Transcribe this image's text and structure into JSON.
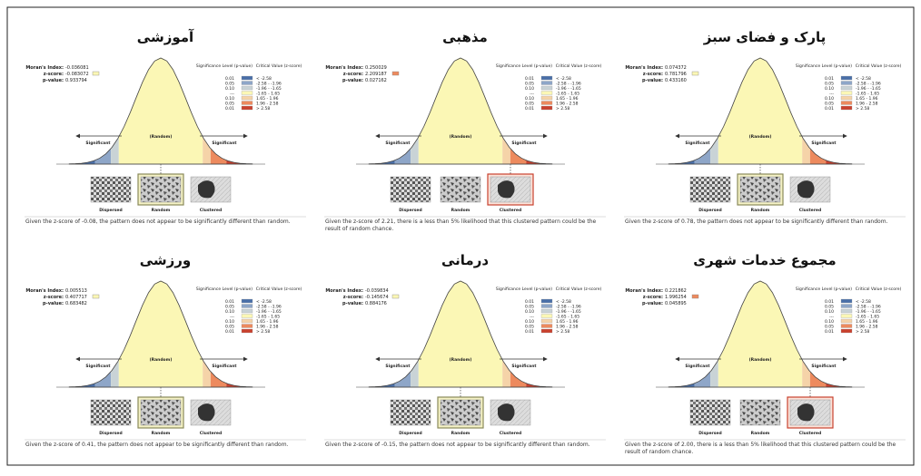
{
  "labels": {
    "moran": "Moran's Index:",
    "z": "z-score:",
    "p": "p-value:",
    "sig_level": "Significance Level (p-value)",
    "crit": "Critical Value (z-score)",
    "significant": "Significant",
    "random_curve": "(Random)",
    "patterns": [
      "Dispersed",
      "Random",
      "Clustered"
    ]
  },
  "legend_rows": [
    {
      "p": "0.01",
      "range": "< -2.58",
      "color": "#4a6fa8"
    },
    {
      "p": "0.05",
      "range": "-2.58 - -1.96",
      "color": "#8ea6c8"
    },
    {
      "p": "0.10",
      "range": "-1.96 - -1.65",
      "color": "#c9d3d6"
    },
    {
      "p": "---",
      "range": "-1.65 - 1.65",
      "color": "#fbf7b5"
    },
    {
      "p": "0.10",
      "range": "1.65 - 1.96",
      "color": "#f5d3a8"
    },
    {
      "p": "0.05",
      "range": "1.96 - 2.58",
      "color": "#ed8a5e"
    },
    {
      "p": "0.01",
      "range": "> 2.58",
      "color": "#c9412e"
    }
  ],
  "z_bounds": [
    -2.58,
    -1.96,
    -1.65,
    1.65,
    1.96,
    2.58
  ],
  "panels": [
    {
      "title": "آموزشی",
      "moran": "-0.036081",
      "z": "-0.083072",
      "p": "0.933794",
      "z_color": "#fbf7b5",
      "highlight": 1,
      "note": "Given the z-score of -0.08, the pattern does not appear to be significantly different than random."
    },
    {
      "title": "مذهبی",
      "moran": "0.250029",
      "z": "2.209187",
      "p": "0.027162",
      "z_color": "#ed8a5e",
      "highlight": 2,
      "note": "Given the z-score of 2.21, there is a less than 5% likelihood that this clustered pattern could be the result of random chance."
    },
    {
      "title": "پارک و فضای سبز",
      "moran": "0.074372",
      "z": "0.781796",
      "p": "0.433160",
      "z_color": "#fbf7b5",
      "highlight": 1,
      "note": "Given the z-score of 0.78, the pattern does not appear to be significantly different than random."
    },
    {
      "title": "ورزشی",
      "moran": "0.005513",
      "z": "0.407717",
      "p": "0.683482",
      "z_color": "#fbf7b5",
      "highlight": 1,
      "note": "Given the z-score of 0.41, the pattern does not appear to be significantly different than random."
    },
    {
      "title": "درمانی",
      "moran": "-0.039834",
      "z": "-0.145674",
      "p": "0.884176",
      "z_color": "#fbf7b5",
      "highlight": 1,
      "note": "Given the z-score of -0.15, the pattern does not appear to be significantly different than random."
    },
    {
      "title": "مجموع خدمات شهری",
      "moran": "0.221862",
      "z": "1.996254",
      "p": "0.045895",
      "z_color": "#ed8a5e",
      "highlight": 2,
      "note": "Given the z-score of 2.00, there is a less than 5% likelihood that this clustered pattern could be the result of random chance."
    }
  ]
}
